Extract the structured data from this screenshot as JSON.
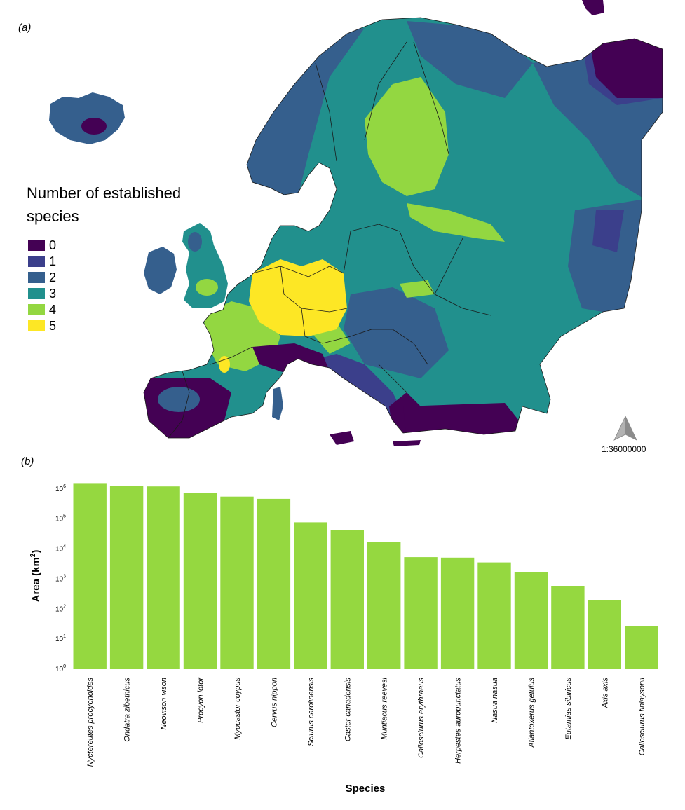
{
  "panel_a": {
    "label": "(a)",
    "legend": {
      "title_line1": "Number of established",
      "title_line2": "species",
      "items": [
        {
          "label": "0",
          "color": "#440154"
        },
        {
          "label": "1",
          "color": "#3b3f8b"
        },
        {
          "label": "2",
          "color": "#355f8d"
        },
        {
          "label": "3",
          "color": "#21908d"
        },
        {
          "label": "4",
          "color": "#93d741"
        },
        {
          "label": "5",
          "color": "#fde725"
        }
      ]
    },
    "scale": "1:36000000",
    "north_arrow_icon": "north-arrow-icon"
  },
  "panel_b": {
    "label": "(b)",
    "chart_data": {
      "type": "bar",
      "title": "",
      "xlabel": "Species",
      "ylabel": "Area (km",
      "ylabel_sup": "2",
      "ylabel_end": ")",
      "yscale": "log",
      "ylim": [
        1,
        2000000
      ],
      "yticks": [
        {
          "value": 1,
          "base": "10",
          "exp": "0"
        },
        {
          "value": 10,
          "base": "10",
          "exp": "1"
        },
        {
          "value": 100,
          "base": "10",
          "exp": "2"
        },
        {
          "value": 1000,
          "base": "10",
          "exp": "3"
        },
        {
          "value": 10000,
          "base": "10",
          "exp": "4"
        },
        {
          "value": 100000,
          "base": "10",
          "exp": "5"
        },
        {
          "value": 1000000,
          "base": "10",
          "exp": "6"
        }
      ],
      "bar_color": "#95d840",
      "categories": [
        "Nyctereutes procyonoides",
        "Ondatra zibethicus",
        "Neovison vison",
        "Procyon lotor",
        "Myocastor coypus",
        "Cervus nippon",
        "Sciurus carolinensis",
        "Castor canadensis",
        "Muntiacus reevesi",
        "Callosciurus erythraeus",
        "Herpestes auropunctatus",
        "Nasua nasua",
        "Atlantoxerus getulus",
        "Eutamias sibiricus",
        "Axis axis",
        "Callosciurus finlaysonii"
      ],
      "values": [
        1500000,
        1280000,
        1220000,
        720000,
        560000,
        470000,
        78000,
        44000,
        17500,
        5400,
        5200,
        3600,
        1700,
        580,
        195,
        27
      ]
    }
  }
}
